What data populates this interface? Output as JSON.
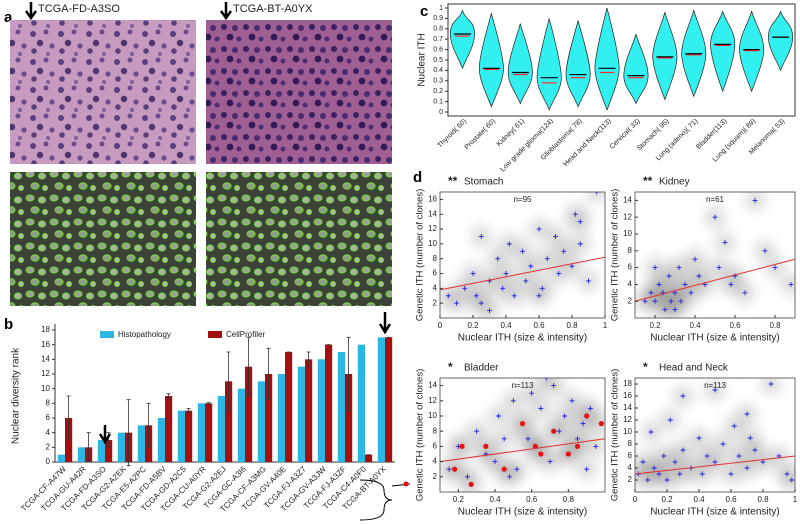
{
  "figure_a": {
    "panel_label": "a",
    "captions": [
      "TCGA-FD-A3SO",
      "TCGA-BT-A0YX"
    ]
  },
  "chart_data": [
    {
      "type": "bar",
      "panel_label": "b",
      "ylabel": "Nuclear diversity rank",
      "categories": [
        "TCGA-CF-A47W",
        "TCGA-GU-A42R",
        "TCGA-FD-A3SO",
        "TCGA-G2-A2EK",
        "TCGA-E5-A2PC",
        "TCGA-FD-A5BV",
        "TCGA-GD-A2C5",
        "TCGA-CU-A0YR",
        "TCGA-G2-A2EJ",
        "TCGA-GC-A3I6",
        "TCGA-CF-A3MG",
        "TCGA-GV-A40E",
        "TCGA-FJ-A3Z7",
        "TCGA-GV-A3JW",
        "TCGA-FJ-A3ZF",
        "TCGA-C4-A0F0",
        "TCGA-BT-A0YX"
      ],
      "series": [
        {
          "name": "Histopathology",
          "color": "#2bb6e3",
          "values": [
            1,
            2,
            3,
            4,
            5,
            6,
            7,
            8,
            9,
            10,
            11,
            12,
            13,
            14,
            15,
            16,
            17
          ]
        },
        {
          "name": "CellProfiler",
          "color": "#a3100f",
          "values": [
            6,
            2,
            3,
            4,
            5,
            9,
            7,
            8,
            11,
            13,
            12,
            15,
            14,
            16,
            12,
            1,
            17
          ],
          "errors": [
            3,
            2,
            1,
            4.5,
            3,
            0.3,
            0.3,
            0.1,
            4,
            4,
            3.5,
            0,
            1,
            0,
            5,
            0,
            0
          ]
        }
      ],
      "ylim": [
        0,
        18
      ],
      "yticks": [
        0,
        2,
        4,
        6,
        8,
        10,
        12,
        14,
        16,
        18
      ],
      "legend": "top"
    },
    {
      "type": "violin",
      "panel_label": "c",
      "ylabel": "Nuclear ITH",
      "color": "#33f0f0",
      "categories": [
        "Thyroid( 60)",
        "Prostate( 60)",
        "Kidney( 61)",
        "Low grade glioma(124)",
        "Glioblastoma( 78)",
        "Head and Neck(113)",
        "Cervical( 33)",
        "Stomach( 95)",
        "Lung (adeno)( 71)",
        "Bladder(113)",
        "Lung (squam)( 89)",
        "Melanoma( 53)"
      ],
      "min": [
        0.42,
        0.05,
        0.08,
        0.02,
        0.05,
        0.02,
        0.08,
        0.12,
        0.15,
        0.2,
        0.2,
        0.4
      ],
      "max": [
        0.98,
        0.95,
        0.85,
        0.9,
        0.88,
        1.0,
        0.75,
        0.96,
        0.98,
        0.97,
        0.97,
        0.97
      ],
      "medians": [
        0.75,
        0.42,
        0.38,
        0.33,
        0.36,
        0.42,
        0.35,
        0.53,
        0.56,
        0.65,
        0.6,
        0.72
      ],
      "means": [
        0.73,
        0.41,
        0.36,
        0.28,
        0.33,
        0.38,
        0.33,
        0.52,
        0.55,
        0.64,
        0.59,
        0.72
      ],
      "median_color": "#000000",
      "mean_color": "#ff2a2a",
      "ylim": [
        0,
        1
      ],
      "yticks": [
        0,
        0.1,
        0.2,
        0.3,
        0.4,
        0.5,
        0.6,
        0.7,
        0.8,
        0.9,
        1
      ]
    },
    {
      "type": "scatter",
      "panel_label": "d",
      "significance": "**",
      "title": "Stomach",
      "note": "n=95",
      "xlabel": "Nuclear ITH (size & intensity)",
      "ylabel": "Genetic ITH (number of clones)",
      "series": [
        {
          "color": "#2323d8",
          "x": [
            0.05,
            0.1,
            0.15,
            0.2,
            0.22,
            0.25,
            0.3,
            0.35,
            0.38,
            0.4,
            0.42,
            0.45,
            0.5,
            0.52,
            0.55,
            0.6,
            0.62,
            0.65,
            0.7,
            0.72,
            0.75,
            0.8,
            0.82,
            0.85,
            0.9,
            0.95,
            0.3,
            0.6,
            0.85,
            0.25
          ],
          "y": [
            3,
            2,
            4,
            6,
            3,
            2,
            5,
            8,
            4,
            6,
            10,
            3,
            9,
            5,
            7,
            12,
            4,
            8,
            11,
            6,
            9,
            7,
            14,
            10,
            5,
            17,
            1,
            3,
            13,
            11
          ]
        }
      ],
      "fit": {
        "color": "#e03030",
        "x": [
          0,
          1
        ],
        "y": [
          3.8,
          8.2
        ]
      },
      "xlim": [
        0,
        1
      ],
      "xticks": [
        0,
        0.2,
        0.4,
        0.6,
        0.8,
        1
      ],
      "ylim": [
        0,
        17
      ],
      "yticks": [
        2,
        4,
        6,
        8,
        10,
        12,
        14,
        16
      ]
    },
    {
      "type": "scatter",
      "significance": "**",
      "title": "Kidney",
      "note": "n=61",
      "xlabel": "Nuclear ITH (size & intensity)",
      "ylabel": "Genetic ITH (number of clones)",
      "series": [
        {
          "color": "#2323d8",
          "x": [
            0.15,
            0.18,
            0.2,
            0.22,
            0.24,
            0.25,
            0.27,
            0.28,
            0.3,
            0.32,
            0.33,
            0.35,
            0.38,
            0.4,
            0.42,
            0.45,
            0.5,
            0.52,
            0.55,
            0.6,
            0.65,
            0.7,
            0.75,
            0.8,
            0.3,
            0.2,
            0.58,
            0.88
          ],
          "y": [
            2,
            3,
            2,
            4,
            3,
            1,
            5,
            2,
            3,
            6,
            2,
            4,
            3,
            7,
            5,
            4,
            12,
            6,
            9,
            5,
            3,
            14,
            8,
            6,
            1,
            6,
            4,
            4
          ]
        }
      ],
      "fit": {
        "color": "#e03030",
        "x": [
          0.1,
          0.9
        ],
        "y": [
          2,
          7
        ]
      },
      "xlim": [
        0.1,
        0.9
      ],
      "xticks": [
        0.2,
        0.4,
        0.6,
        0.8
      ],
      "ylim": [
        0,
        15
      ],
      "yticks": [
        2,
        4,
        6,
        8,
        10,
        12,
        14
      ]
    },
    {
      "type": "scatter",
      "significance": "*",
      "title": "Bladder",
      "note": "n=113",
      "xlabel": "Nuclear ITH (size & intensity)",
      "ylabel": "Genetic ITH (number of clones)",
      "series": [
        {
          "color": "#2323d8",
          "x": [
            0.15,
            0.2,
            0.25,
            0.3,
            0.35,
            0.4,
            0.42,
            0.45,
            0.5,
            0.52,
            0.55,
            0.6,
            0.62,
            0.65,
            0.7,
            0.72,
            0.75,
            0.78,
            0.8,
            0.82,
            0.85,
            0.88,
            0.9,
            0.95,
            0.48,
            0.68,
            0.58,
            0.92
          ],
          "y": [
            3,
            6,
            2,
            8,
            5,
            4,
            10,
            7,
            12,
            3,
            9,
            13,
            6,
            11,
            4,
            14,
            8,
            10,
            5,
            12,
            7,
            9,
            3,
            6,
            2,
            15,
            7,
            11
          ]
        },
        {
          "color": "#e81010",
          "marker": "dot",
          "x": [
            0.18,
            0.22,
            0.27,
            0.35,
            0.45,
            0.55,
            0.62,
            0.65,
            0.72,
            0.8,
            0.9,
            0.98,
            0.85
          ],
          "y": [
            3,
            6,
            1,
            6,
            3,
            9,
            6,
            5,
            8,
            5,
            10,
            9,
            6
          ]
        }
      ],
      "fit": {
        "color": "#e03030",
        "x": [
          0.1,
          1
        ],
        "y": [
          4,
          7
        ]
      },
      "xlim": [
        0.1,
        1
      ],
      "xticks": [
        0.2,
        0.4,
        0.6,
        0.8
      ],
      "ylim": [
        0,
        15
      ],
      "yticks": [
        2,
        4,
        6,
        8,
        10,
        12,
        14
      ]
    },
    {
      "type": "scatter",
      "significance": "*",
      "title": "Head and Neck",
      "note": "n=113",
      "xlabel": "Nuclear ITH (size & intensity)",
      "ylabel": "Genetic ITH (number of clones)",
      "series": [
        {
          "color": "#2323d8",
          "x": [
            0.02,
            0.05,
            0.08,
            0.1,
            0.12,
            0.15,
            0.18,
            0.2,
            0.22,
            0.25,
            0.28,
            0.3,
            0.35,
            0.4,
            0.42,
            0.45,
            0.5,
            0.55,
            0.6,
            0.62,
            0.65,
            0.7,
            0.72,
            0.75,
            0.8,
            0.85,
            0.9,
            0.95,
            0.98,
            0.3,
            0.5,
            0.7
          ],
          "y": [
            3,
            5,
            2,
            10,
            4,
            3,
            6,
            2,
            12,
            5,
            3,
            7,
            4,
            9,
            3,
            6,
            5,
            8,
            3,
            11,
            6,
            4,
            9,
            7,
            5,
            18,
            6,
            3,
            2,
            16,
            17,
            13
          ]
        }
      ],
      "fit": {
        "color": "#e03030",
        "x": [
          0,
          1
        ],
        "y": [
          3,
          6
        ]
      },
      "xlim": [
        0,
        1
      ],
      "xticks": [
        0,
        0.2,
        0.4,
        0.6,
        0.8,
        1
      ],
      "ylim": [
        0,
        19
      ],
      "yticks": [
        2,
        4,
        6,
        8,
        10,
        12,
        14,
        16,
        18
      ]
    }
  ]
}
